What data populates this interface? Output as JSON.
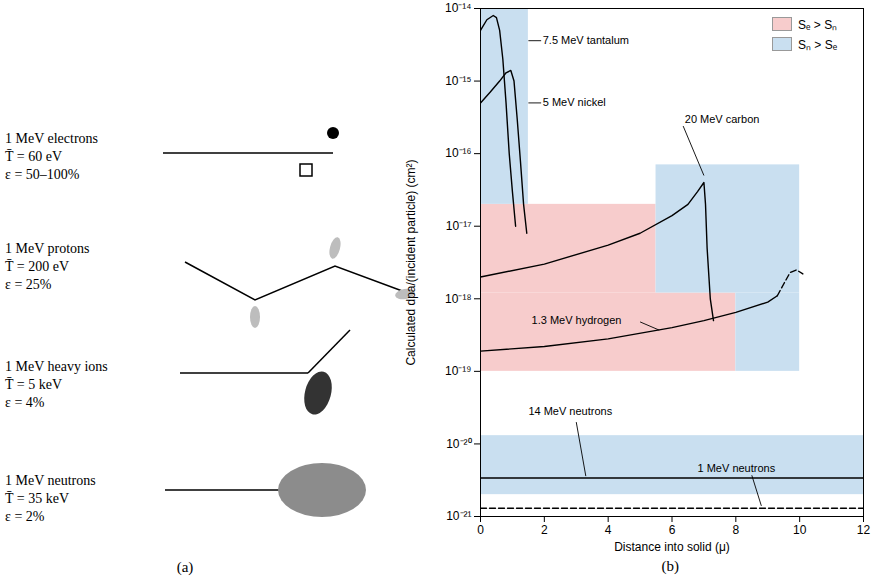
{
  "diagram": {
    "caption": "(a)",
    "rows": [
      {
        "particle": "1 MeV electrons",
        "energy": "T̄ = 60 eV",
        "efficiency": "ε = 50–100%"
      },
      {
        "particle": "1 MeV protons",
        "energy": "T̄ = 200 eV",
        "efficiency": "ε = 25%"
      },
      {
        "particle": "1 MeV heavy ions",
        "energy": "T̄ = 5 keV",
        "efficiency": "ε = 4%"
      },
      {
        "particle": "1 MeV neutrons",
        "energy": "T̄ = 35 keV",
        "efficiency": "ε = 2%"
      }
    ]
  },
  "chart_data": {
    "type": "line",
    "caption": "(b)",
    "x_label": "Distance into solid (μ)",
    "y_label": "Calculated dpa/(incident particle) (cm²)",
    "log": "y",
    "xlim": [
      0,
      12
    ],
    "xticks": [
      0,
      2,
      4,
      6,
      8,
      10,
      12
    ],
    "ylim": [
      1e-21,
      1e-14
    ],
    "yticks": [
      {
        "value": 1e-21,
        "label": "10⁻²¹"
      },
      {
        "value": 1e-20,
        "label": "10⁻²⁰"
      },
      {
        "value": 1e-19,
        "label": "10⁻¹⁹"
      },
      {
        "value": 1e-18,
        "label": "10⁻¹⁸"
      },
      {
        "value": 1e-17,
        "label": "10⁻¹⁷"
      },
      {
        "value": 1e-16,
        "label": "10⁻¹⁶"
      },
      {
        "value": 1e-15,
        "label": "10⁻¹⁵"
      },
      {
        "value": 1e-14,
        "label": "10⁻¹⁴"
      }
    ],
    "legend": "top-right",
    "regions": [
      {
        "name": "Sₑ > Sₙ",
        "color": "#f7cccc",
        "rects": [
          {
            "x": [
              0,
              5.5
            ],
            "y": [
              1.2e-18,
              2e-17
            ]
          },
          {
            "x": [
              0,
              8
            ],
            "y": [
              1e-19,
              1.2e-18
            ]
          }
        ]
      },
      {
        "name": "Sₙ > Sₑ",
        "color": "#c9dff0",
        "rects": [
          {
            "x": [
              0,
              1.5
            ],
            "y": [
              2e-17,
              1e-14
            ]
          },
          {
            "x": [
              5.5,
              10
            ],
            "y": [
              1.2e-18,
              7e-17
            ]
          },
          {
            "x": [
              8,
              10
            ],
            "y": [
              1e-19,
              1.2e-18
            ]
          },
          {
            "x": [
              0,
              12
            ],
            "y": [
              2e-21,
              1.3e-20
            ]
          }
        ]
      }
    ],
    "series": [
      {
        "name": "7.5 MeV tantalum",
        "color": "#000000",
        "line_style": "solid",
        "x": [
          0,
          0.2,
          0.4,
          0.5,
          0.6,
          0.7,
          0.8,
          0.9,
          1.0,
          1.1
        ],
        "values": [
          5e-15,
          7e-15,
          8e-15,
          7.5e-15,
          5e-15,
          2e-15,
          5e-16,
          1e-16,
          3e-17,
          1e-17
        ]
      },
      {
        "name": "5 MeV nickel",
        "color": "#000000",
        "line_style": "solid",
        "x": [
          0,
          0.3,
          0.6,
          0.8,
          0.95,
          1.05,
          1.15,
          1.25,
          1.35,
          1.45
        ],
        "values": [
          5e-16,
          7e-16,
          1e-15,
          1.3e-15,
          1.4e-15,
          1e-15,
          3e-16,
          8e-17,
          2e-17,
          8e-18
        ]
      },
      {
        "name": "20 MeV carbon",
        "color": "#000000",
        "line_style": "solid",
        "x": [
          0,
          2,
          4,
          5,
          6,
          6.5,
          6.8,
          7.0,
          7.05,
          7.1,
          7.2,
          7.3
        ],
        "values": [
          2e-18,
          3e-18,
          5.5e-18,
          8e-18,
          1.4e-17,
          2e-17,
          3e-17,
          4e-17,
          2e-17,
          5e-18,
          1e-18,
          5e-19
        ]
      },
      {
        "name": "1.3 MeV hydrogen",
        "color": "#000000",
        "line_style": "solid",
        "x": [
          0,
          2,
          4,
          6,
          7,
          8,
          9,
          9.3
        ],
        "values": [
          1.9e-19,
          2.2e-19,
          2.8e-19,
          4e-19,
          5e-19,
          6.5e-19,
          9e-19,
          1.1e-18
        ]
      },
      {
        "name": null,
        "color": "#000000",
        "line_style": "dashed",
        "x": [
          9.3,
          9.5,
          9.7,
          9.9,
          10.1
        ],
        "values": [
          1.1e-18,
          1.6e-18,
          2.3e-18,
          2.5e-18,
          2.2e-18
        ]
      },
      {
        "name": "14 MeV neutrons",
        "color": "#000000",
        "line_style": "solid",
        "x": [
          0,
          12
        ],
        "values": [
          3.4e-21,
          3.4e-21
        ]
      },
      {
        "name": "1 MeV neutrons",
        "color": "#000000",
        "line_style": "dashed",
        "x": [
          0,
          12
        ],
        "values": [
          1.3e-21,
          1.3e-21
        ]
      }
    ]
  }
}
